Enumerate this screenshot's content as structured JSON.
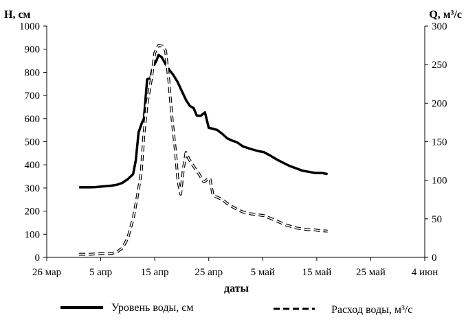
{
  "chart_data": {
    "type": "line",
    "title": "",
    "xlabel": "даты",
    "ylabel_left": "H, см",
    "ylabel_right": "Q, м³/с",
    "ylim_left": [
      0,
      1000
    ],
    "ylim_right": [
      0,
      300
    ],
    "yticks_left": [
      0,
      100,
      200,
      300,
      400,
      500,
      600,
      700,
      800,
      900,
      1000
    ],
    "yticks_right": [
      0,
      50,
      100,
      150,
      200,
      250,
      300
    ],
    "x_ticks": [
      {
        "day": 0,
        "label": "26 мар"
      },
      {
        "day": 10,
        "label": "5 апр"
      },
      {
        "day": 20,
        "label": "15 апр"
      },
      {
        "day": 30,
        "label": "25 апр"
      },
      {
        "day": 40,
        "label": "5 май"
      },
      {
        "day": 50,
        "label": "15 май"
      },
      {
        "day": 60,
        "label": "25 май"
      },
      {
        "day": 70,
        "label": "4 июн"
      }
    ],
    "grid": false,
    "legend_position": "bottom",
    "series": [
      {
        "name": "Уровень воды, см",
        "axis": "left",
        "style": "solid",
        "color": "#000000",
        "points": [
          [
            6,
            303
          ],
          [
            7,
            303
          ],
          [
            8,
            303
          ],
          [
            9,
            304
          ],
          [
            10,
            306
          ],
          [
            11,
            308
          ],
          [
            12,
            310
          ],
          [
            13,
            314
          ],
          [
            14,
            322
          ],
          [
            15,
            338
          ],
          [
            16,
            360
          ],
          [
            16.5,
            420
          ],
          [
            17,
            540
          ],
          [
            17.6,
            580
          ],
          [
            18,
            600
          ],
          [
            18.6,
            770
          ],
          [
            19.2,
            775
          ],
          [
            19.6,
            820
          ],
          [
            20.3,
            850
          ],
          [
            20.7,
            875
          ],
          [
            21.3,
            865
          ],
          [
            22,
            835
          ],
          [
            22.7,
            810
          ],
          [
            23.4,
            790
          ],
          [
            24.2,
            760
          ],
          [
            25,
            720
          ],
          [
            25.8,
            680
          ],
          [
            26.5,
            655
          ],
          [
            27.2,
            645
          ],
          [
            27.8,
            613
          ],
          [
            28.5,
            612
          ],
          [
            29.3,
            627
          ],
          [
            30,
            560
          ],
          [
            30.8,
            556
          ],
          [
            31.6,
            550
          ],
          [
            32.5,
            534
          ],
          [
            33.4,
            515
          ],
          [
            34.2,
            506
          ],
          [
            35.2,
            498
          ],
          [
            36.3,
            480
          ],
          [
            37.3,
            472
          ],
          [
            38.2,
            466
          ],
          [
            39.1,
            460
          ],
          [
            40.2,
            455
          ],
          [
            41.4,
            440
          ],
          [
            42.6,
            423
          ],
          [
            43.7,
            410
          ],
          [
            45,
            395
          ],
          [
            46.2,
            385
          ],
          [
            47.3,
            375
          ],
          [
            48.5,
            370
          ],
          [
            49.7,
            365
          ],
          [
            51,
            365
          ],
          [
            52,
            360
          ]
        ]
      },
      {
        "name": "Расход воды, м³/с",
        "axis": "right",
        "style": "dashed",
        "color": "#000000",
        "points": [
          [
            6,
            4
          ],
          [
            8,
            4
          ],
          [
            10,
            5
          ],
          [
            12,
            5
          ],
          [
            13,
            7
          ],
          [
            14,
            12
          ],
          [
            15,
            25
          ],
          [
            16,
            50
          ],
          [
            16.8,
            80
          ],
          [
            17.5,
            110
          ],
          [
            18,
            160
          ],
          [
            18.6,
            200
          ],
          [
            19.4,
            232
          ],
          [
            20,
            265
          ],
          [
            20.7,
            275
          ],
          [
            21.4,
            274
          ],
          [
            22,
            268
          ],
          [
            22.6,
            230
          ],
          [
            23.2,
            180
          ],
          [
            23.8,
            140
          ],
          [
            24.3,
            100
          ],
          [
            24.8,
            82
          ],
          [
            25.3,
            115
          ],
          [
            25.8,
            136
          ],
          [
            26.3,
            128
          ],
          [
            27.2,
            118
          ],
          [
            28.2,
            108
          ],
          [
            29.1,
            98
          ],
          [
            30.2,
            103
          ],
          [
            30.8,
            80
          ],
          [
            31.6,
            78
          ],
          [
            32.5,
            75
          ],
          [
            33.4,
            70
          ],
          [
            34.3,
            66
          ],
          [
            35.3,
            62
          ],
          [
            36.3,
            59
          ],
          [
            37.3,
            57
          ],
          [
            38.3,
            56
          ],
          [
            39.3,
            55
          ],
          [
            40.3,
            54
          ],
          [
            41.3,
            51
          ],
          [
            42.3,
            48
          ],
          [
            43.3,
            45
          ],
          [
            44.3,
            42
          ],
          [
            45.3,
            40
          ],
          [
            46.3,
            38
          ],
          [
            47.3,
            37
          ],
          [
            48.3,
            36
          ],
          [
            49.3,
            36
          ],
          [
            50.3,
            35
          ],
          [
            52,
            34
          ]
        ]
      }
    ]
  }
}
